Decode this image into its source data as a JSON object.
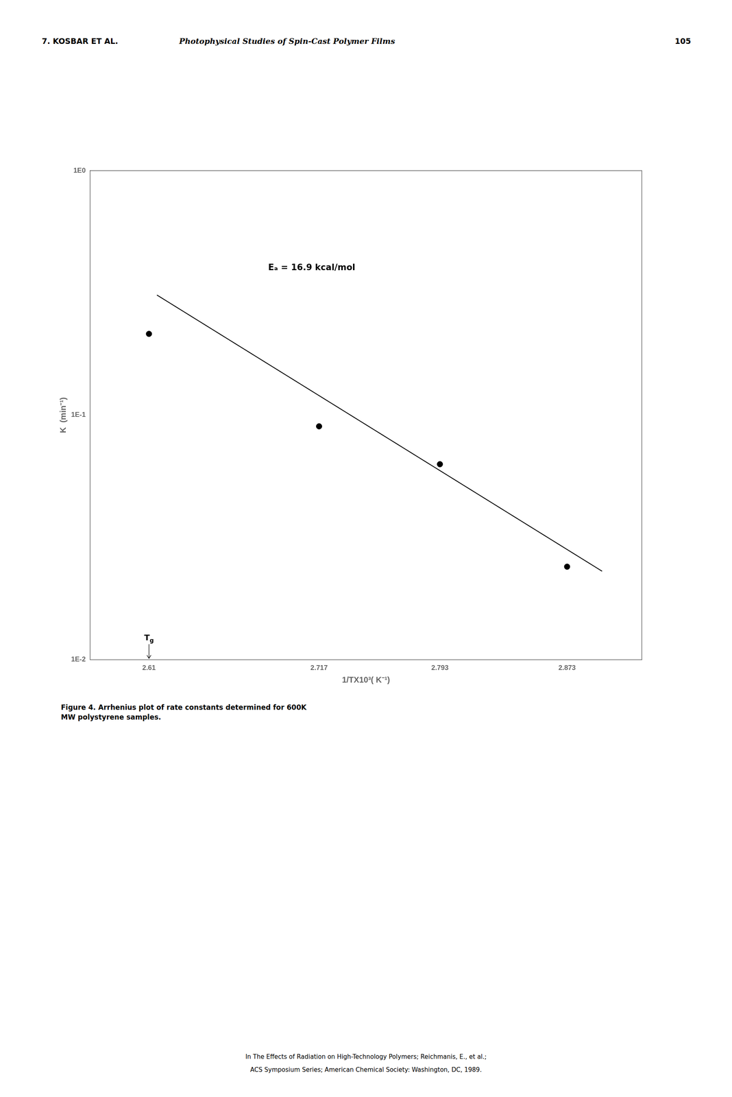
{
  "chart_data": {
    "type": "scatter",
    "header": [
      "7.  KOSBAR ET AL.",
      "Photophysical Studies of Spin-Cast Polymer Films",
      "105"
    ],
    "x_label": "1/TX10³( K⁻¹)",
    "y_label": "K  (min⁻¹)",
    "log": "y",
    "grid": false,
    "series": [
      {
        "type": "scatter",
        "marker": "circle",
        "color": "#000000",
        "x": [
          2.61,
          2.717,
          2.793,
          2.873
        ],
        "values": [
          0.215,
          0.09,
          0.063,
          0.024
        ]
      },
      {
        "type": "line",
        "line_style": "solid",
        "color": "#000000",
        "x": [
          2.615,
          2.895
        ],
        "values": [
          0.31,
          0.023
        ]
      }
    ],
    "xlim": [
      2.573,
      2.92
    ],
    "xticks": [
      2.61,
      2.717,
      2.793,
      2.873
    ],
    "ylim": [
      0.01,
      1.0
    ],
    "yticks": [
      {
        "value": 0.01,
        "label": "1E-2"
      },
      {
        "value": 0.1,
        "label": "1E-1"
      },
      {
        "value": 1.0,
        "label": "1E0"
      }
    ],
    "annotations": [
      {
        "text": "Eₐ = 16.9 kcal/mol",
        "x": 2.685,
        "y": 0.4
      },
      {
        "text": "Tg",
        "x": 2.61,
        "arrow": true
      }
    ],
    "caption": "Figure 4.  Arrhenius plot of rate constants determined for 600K\nMW polystyrene samples.",
    "footer": [
      "In The Effects of Radiation on High-Technology Polymers; Reichmanis, E., et al.;",
      "ACS Symposium Series; American Chemical Society: Washington, DC, 1989."
    ]
  }
}
